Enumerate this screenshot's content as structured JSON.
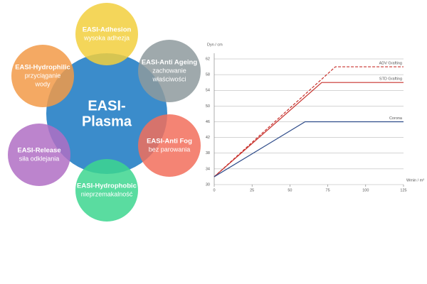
{
  "diagram": {
    "center": {
      "label_lines": [
        "EASI-",
        "Plasma"
      ]
    },
    "nodes": [
      {
        "title": "EASI-Adhesion",
        "subtitle_lines": [
          "wysoka adhezja"
        ],
        "color": "#f2cf3d"
      },
      {
        "title": "EASI-Anti Ageing",
        "subtitle_lines": [
          "zachowanie",
          "właściwości"
        ],
        "color": "#8e9a9e"
      },
      {
        "title": "EASI-Anti Fog",
        "subtitle_lines": [
          "bez parowania"
        ],
        "color": "#f26f5c"
      },
      {
        "title": "EASI-Hydrophobic",
        "subtitle_lines": [
          "nieprzemakalność"
        ],
        "color": "#3dd68f"
      },
      {
        "title": "EASI-Release",
        "subtitle_lines": [
          "siła odklejania"
        ],
        "color": "#b06fc4"
      },
      {
        "title": "EASI-Hydrophilic",
        "subtitle_lines": [
          "przyciąganie",
          "wody"
        ],
        "color": "#f29a48"
      }
    ]
  },
  "chart_data": {
    "type": "line",
    "y_label": "Dyn / cm",
    "x_label": "Wmin / m²",
    "xlim": [
      0,
      125
    ],
    "ylim": [
      30,
      62
    ],
    "xticks": [
      0,
      25,
      50,
      75,
      100,
      125
    ],
    "yticks": [
      30,
      34,
      38,
      42,
      46,
      50,
      54,
      58,
      62
    ],
    "grid": true,
    "series": [
      {
        "name": "ADV Grafting",
        "color": "#c8322d",
        "dashed": true,
        "x": [
          0,
          80,
          125
        ],
        "values": [
          32,
          60,
          60
        ]
      },
      {
        "name": "STD Grafting",
        "color": "#c8322d",
        "dashed": false,
        "x": [
          0,
          71,
          125
        ],
        "values": [
          32,
          56,
          56
        ]
      },
      {
        "name": "Corona",
        "color": "#2f4c8a",
        "dashed": false,
        "x": [
          0,
          60,
          125
        ],
        "values": [
          32,
          46,
          46
        ]
      }
    ]
  }
}
